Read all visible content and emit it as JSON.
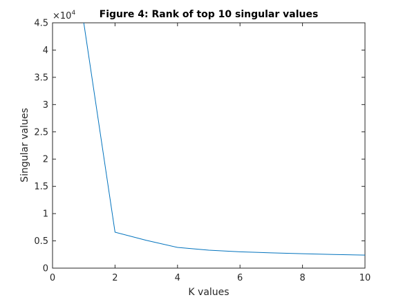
{
  "chart_data": {
    "type": "line",
    "title": "Figure 4: Rank of top 10 singular values",
    "xlabel": "K values",
    "ylabel": "Singular values",
    "xlim": [
      0,
      10
    ],
    "ylim": [
      0,
      45000
    ],
    "x_ticks": [
      0,
      2,
      4,
      6,
      8,
      10
    ],
    "y_ticks": [
      0,
      0.5,
      1,
      1.5,
      2,
      2.5,
      3,
      3.5,
      4,
      4.5
    ],
    "y_tick_labels": [
      "0",
      "0.5",
      "1",
      "1.5",
      "2",
      "2.5",
      "3",
      "3.5",
      "4",
      "4.5"
    ],
    "y_exponent_base": "×10",
    "y_exponent_power": "4",
    "y_exponent_value": 10000,
    "grid": false,
    "legend": "none",
    "series": [
      {
        "color": "#0072bd",
        "x": [
          1,
          2,
          3,
          4,
          5,
          6,
          7,
          8,
          9,
          10
        ],
        "y": [
          45000,
          6600,
          5100,
          3800,
          3300,
          3000,
          2800,
          2650,
          2500,
          2400
        ]
      }
    ]
  }
}
